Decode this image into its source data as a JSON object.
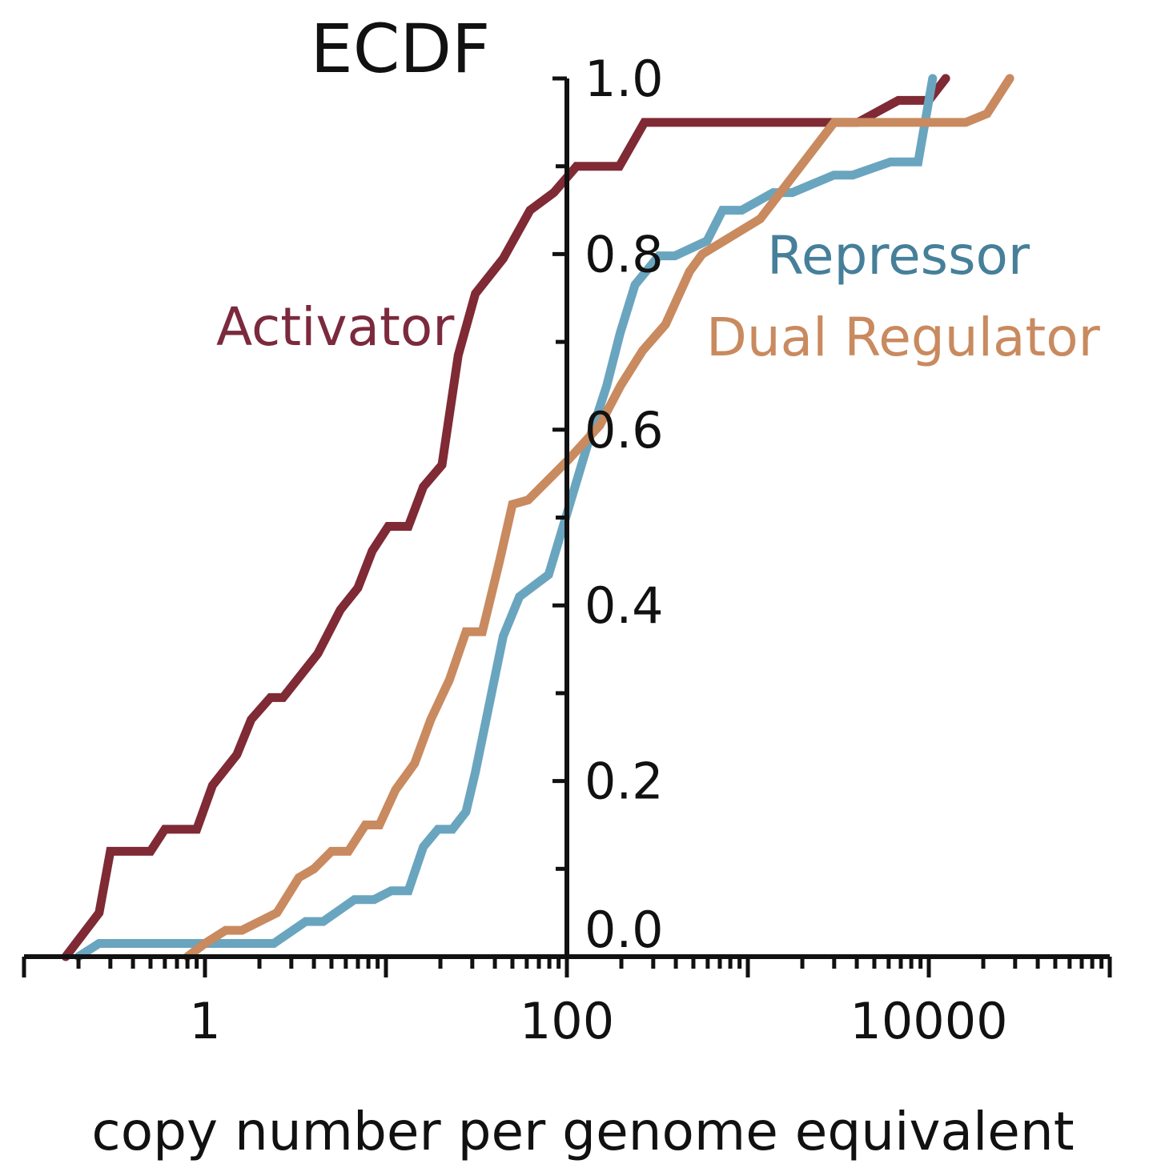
{
  "chart_data": {
    "type": "line",
    "title": "ECDF",
    "xlabel": "copy number per genome equivalent",
    "ylabel": "",
    "x_scale": "log10",
    "xlim": [
      0.1,
      100000
    ],
    "ylim": [
      0.0,
      1.0
    ],
    "x_tick_labels": [
      "1",
      "100",
      "10000"
    ],
    "x_tick_values": [
      1,
      100,
      10000
    ],
    "y_tick_labels": [
      "0.0",
      "0.2",
      "0.4",
      "0.6",
      "0.8",
      "1.0"
    ],
    "y_tick_values": [
      0.0,
      0.2,
      0.4,
      0.6,
      0.8,
      1.0
    ],
    "y_minor_ticks": [
      0.1,
      0.3,
      0.5,
      0.7,
      0.9
    ],
    "y_axis_crosses_x_at": 100,
    "grid": false,
    "legend": "inline labels",
    "series": [
      {
        "name": "Activator",
        "color": "#7f2a35",
        "label_color": "#7b2a3d",
        "points": [
          [
            0.17,
            0.0
          ],
          [
            0.26,
            0.05
          ],
          [
            0.3,
            0.12
          ],
          [
            0.5,
            0.12
          ],
          [
            0.6,
            0.145
          ],
          [
            0.9,
            0.145
          ],
          [
            1.1,
            0.195
          ],
          [
            1.5,
            0.23
          ],
          [
            1.8,
            0.27
          ],
          [
            2.3,
            0.295
          ],
          [
            2.7,
            0.295
          ],
          [
            4.2,
            0.345
          ],
          [
            5.6,
            0.395
          ],
          [
            7.0,
            0.42
          ],
          [
            8.4,
            0.462
          ],
          [
            10.3,
            0.49
          ],
          [
            13.3,
            0.49
          ],
          [
            16.1,
            0.535
          ],
          [
            20.4,
            0.56
          ],
          [
            25.1,
            0.685
          ],
          [
            31.2,
            0.755
          ],
          [
            44.5,
            0.795
          ],
          [
            62.6,
            0.85
          ],
          [
            84.7,
            0.87
          ],
          [
            113.0,
            0.9
          ],
          [
            195.0,
            0.9
          ],
          [
            268.0,
            0.95
          ],
          [
            4050.0,
            0.95
          ],
          [
            6790.0,
            0.975
          ],
          [
            10000.0,
            0.975
          ],
          [
            12400.0,
            1.0
          ]
        ]
      },
      {
        "name": "Repressor",
        "color": "#6aa5bf",
        "label_color": "#467f9a",
        "points": [
          [
            0.2,
            0.0
          ],
          [
            0.26,
            0.015
          ],
          [
            1.2,
            0.015
          ],
          [
            2.4,
            0.015
          ],
          [
            3.6,
            0.04
          ],
          [
            4.5,
            0.04
          ],
          [
            6.7,
            0.065
          ],
          [
            8.6,
            0.065
          ],
          [
            10.7,
            0.075
          ],
          [
            13.3,
            0.075
          ],
          [
            16.1,
            0.125
          ],
          [
            19.4,
            0.145
          ],
          [
            23.3,
            0.145
          ],
          [
            27.7,
            0.165
          ],
          [
            31.2,
            0.21
          ],
          [
            44.5,
            0.365
          ],
          [
            54.7,
            0.41
          ],
          [
            79.3,
            0.435
          ],
          [
            131.0,
            0.585
          ],
          [
            166.0,
            0.65
          ],
          [
            197.0,
            0.71
          ],
          [
            238.0,
            0.765
          ],
          [
            322.0,
            0.798
          ],
          [
            395.0,
            0.798
          ],
          [
            595.0,
            0.815
          ],
          [
            725.0,
            0.85
          ],
          [
            925.0,
            0.85
          ],
          [
            1380.0,
            0.87
          ],
          [
            1760.0,
            0.87
          ],
          [
            2990.0,
            0.89
          ],
          [
            3800.0,
            0.89
          ],
          [
            6150.0,
            0.905
          ],
          [
            8730.0,
            0.905
          ],
          [
            10500.0,
            1.0
          ]
        ]
      },
      {
        "name": "Dual Regulator",
        "color": "#c98a5f",
        "label_color": "#c98a5f",
        "points": [
          [
            0.8,
            0.0
          ],
          [
            1.0,
            0.015
          ],
          [
            1.3,
            0.03
          ],
          [
            1.6,
            0.03
          ],
          [
            2.5,
            0.05
          ],
          [
            3.3,
            0.09
          ],
          [
            4.0,
            0.1
          ],
          [
            5.0,
            0.12
          ],
          [
            6.2,
            0.12
          ],
          [
            7.7,
            0.15
          ],
          [
            9.2,
            0.15
          ],
          [
            11.3,
            0.19
          ],
          [
            14.4,
            0.22
          ],
          [
            17.7,
            0.27
          ],
          [
            22.4,
            0.315
          ],
          [
            27.7,
            0.37
          ],
          [
            34.1,
            0.37
          ],
          [
            42.4,
            0.45
          ],
          [
            50.0,
            0.515
          ],
          [
            61.1,
            0.52
          ],
          [
            101.0,
            0.565
          ],
          [
            152.0,
            0.605
          ],
          [
            198.0,
            0.65
          ],
          [
            262.0,
            0.69
          ],
          [
            351.0,
            0.72
          ],
          [
            476.0,
            0.78
          ],
          [
            560.0,
            0.8
          ],
          [
            1170.0,
            0.84
          ],
          [
            3000.0,
            0.95
          ],
          [
            10000.0,
            0.95
          ],
          [
            16000.0,
            0.95
          ],
          [
            21000.0,
            0.96
          ],
          [
            28000.0,
            1.0
          ]
        ]
      }
    ]
  }
}
